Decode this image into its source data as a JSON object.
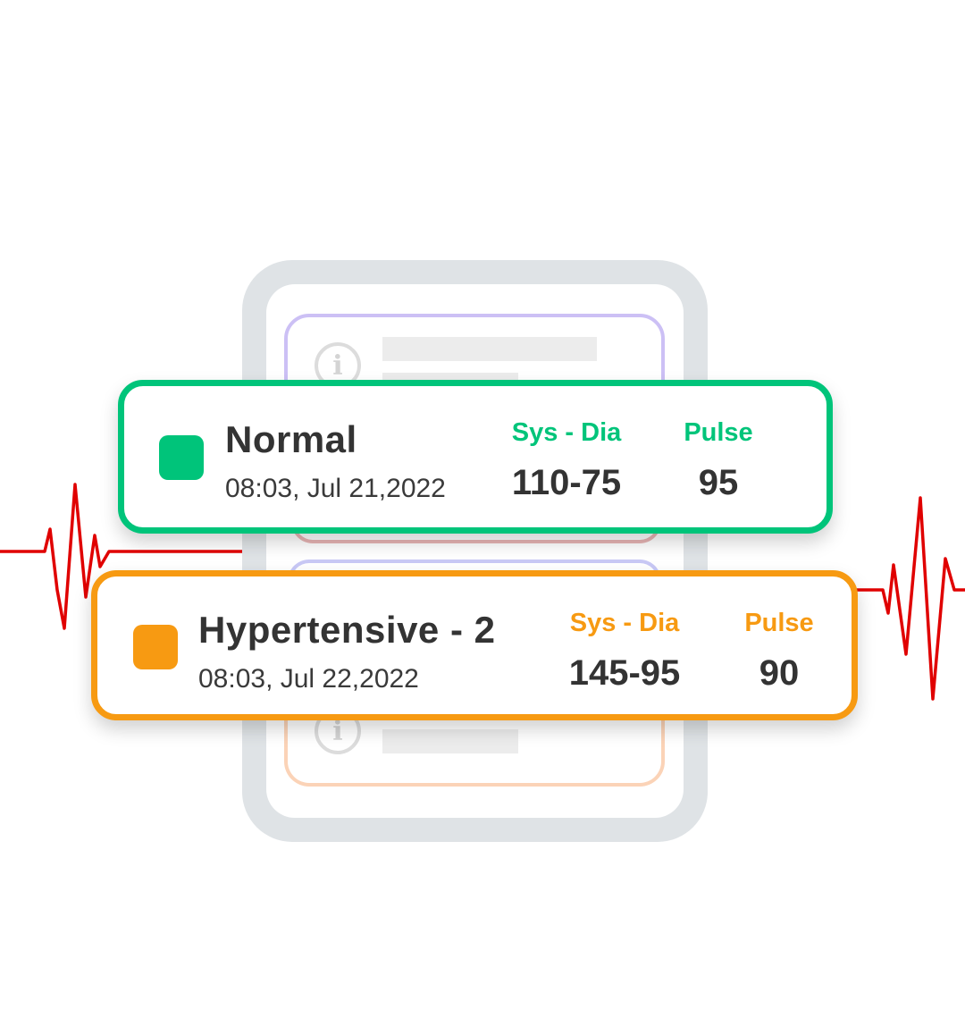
{
  "colors": {
    "normal": "#00c47a",
    "hypertensive": "#f79a12",
    "ecg": "#e00000",
    "phone_frame": "#dfe3e6"
  },
  "decorations": {
    "info_icon_glyph": "i",
    "phone_icon": "info-icon"
  },
  "readings": [
    {
      "status": "Normal",
      "datetime": "08:03, Jul 21,2022",
      "sys_dia_label": "Sys - Dia",
      "sys_dia_value": "110-75",
      "pulse_label": "Pulse",
      "pulse_value": "95"
    },
    {
      "status": "Hypertensive - 2",
      "datetime": "08:03, Jul 22,2022",
      "sys_dia_label": "Sys - Dia",
      "sys_dia_value": "145-95",
      "pulse_label": "Pulse",
      "pulse_value": "90"
    }
  ]
}
